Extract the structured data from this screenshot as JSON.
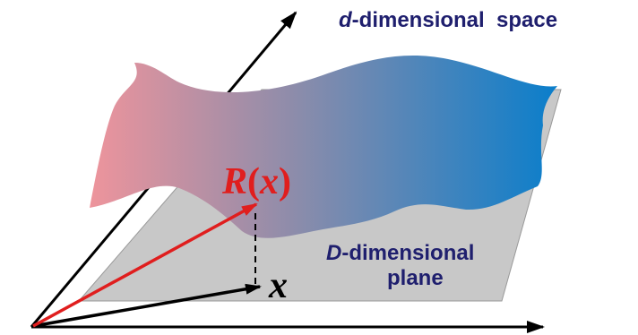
{
  "space_label": {
    "italic": "d",
    "rest": "-dimensional  space"
  },
  "plane_label": {
    "italic": "D",
    "line1_rest": "-dimensional",
    "line2": "plane"
  },
  "mapping_label": {
    "function": "R",
    "open": "(",
    "variable": "x",
    "close": ")"
  },
  "point_label": "x"
}
